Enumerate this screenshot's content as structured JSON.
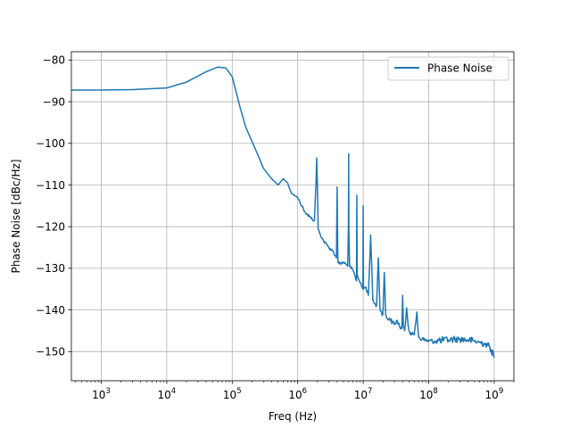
{
  "chart_data": {
    "type": "line",
    "xlabel": "Freq (Hz)",
    "ylabel": "Phase Noise [dBc/Hz]",
    "xscale": "log",
    "xlim": [
      350,
      2000000000
    ],
    "ylim": [
      -157,
      -78
    ],
    "grid": true,
    "legend": {
      "placement": "top-right",
      "entries": [
        "Phase Noise"
      ]
    },
    "x_ticks": [
      {
        "value": 1000,
        "base": "10",
        "exp": "3"
      },
      {
        "value": 10000,
        "base": "10",
        "exp": "4"
      },
      {
        "value": 100000,
        "base": "10",
        "exp": "5"
      },
      {
        "value": 1000000,
        "base": "10",
        "exp": "6"
      },
      {
        "value": 10000000,
        "base": "10",
        "exp": "7"
      },
      {
        "value": 100000000,
        "base": "10",
        "exp": "8"
      },
      {
        "value": 1000000000,
        "base": "10",
        "exp": "9"
      }
    ],
    "y_ticks": [
      {
        "value": -80,
        "label": "−80"
      },
      {
        "value": -90,
        "label": "−90"
      },
      {
        "value": -100,
        "label": "−100"
      },
      {
        "value": -110,
        "label": "−110"
      },
      {
        "value": -120,
        "label": "−120"
      },
      {
        "value": -130,
        "label": "−130"
      },
      {
        "value": -140,
        "label": "−140"
      },
      {
        "value": -150,
        "label": "−150"
      }
    ],
    "series": [
      {
        "name": "Phase Noise",
        "color": "#1f77b4",
        "x": [
          350,
          1000,
          3000,
          10000,
          20000,
          40000,
          60000,
          80000,
          100000,
          130000,
          160000,
          200000,
          250000,
          300000,
          400000,
          500000,
          600000,
          700000,
          800000,
          1000000,
          1300000,
          1600000,
          1800000,
          1900000,
          1950000,
          2000000,
          2050000,
          2150000,
          2500000,
          3000000,
          3500000,
          3900000,
          4000000,
          4100000,
          4500000,
          5000000,
          5800000,
          5950000,
          6000000,
          6050000,
          6200000,
          7000000,
          7900000,
          8000000,
          8100000,
          9000000,
          9900000,
          10000000,
          10100000,
          11000000,
          12000000,
          13000000,
          14000000,
          15000000,
          16000000,
          17000000,
          18000000,
          19000000,
          20000000,
          21000000,
          22000000,
          23000000,
          25000000,
          28000000,
          30000000,
          33000000,
          36000000,
          39000000,
          40000000,
          41000000,
          43000000,
          46000000,
          50000000,
          55000000,
          60000000,
          66000000,
          70000000,
          80000000,
          100000000,
          130000000,
          150000000,
          200000000,
          250000000,
          300000000,
          400000000,
          500000000,
          600000000,
          700000000,
          800000000,
          900000000,
          1000000000
        ],
        "y": [
          -87.2,
          -87.2,
          -87.1,
          -86.7,
          -85.3,
          -82.8,
          -81.7,
          -81.9,
          -84.0,
          -91.0,
          -96.0,
          -99.5,
          -103.0,
          -106.0,
          -108.5,
          -110.0,
          -108.5,
          -109.5,
          -112.0,
          -113.0,
          -116.5,
          -118.0,
          -118.5,
          -110.0,
          -103.5,
          -110.0,
          -120.5,
          -121.5,
          -123.5,
          -125.0,
          -126.0,
          -127.5,
          -110.5,
          -128.5,
          -129.0,
          -128.5,
          -129.5,
          -120.0,
          -102.5,
          -121.0,
          -129.5,
          -130.5,
          -133.0,
          -112.5,
          -131.5,
          -133.5,
          -135.0,
          -115.0,
          -135.0,
          -134.5,
          -136.5,
          -122.0,
          -137.5,
          -138.5,
          -139.0,
          -127.5,
          -139.5,
          -140.5,
          -141.0,
          -131.0,
          -141.0,
          -142.0,
          -142.0,
          -143.0,
          -143.5,
          -142.5,
          -144.0,
          -144.5,
          -136.5,
          -144.0,
          -145.0,
          -139.5,
          -145.0,
          -146.0,
          -146.0,
          -140.5,
          -146.5,
          -147.0,
          -147.5,
          -147.5,
          -147.3,
          -147.2,
          -147.0,
          -147.0,
          -147.2,
          -147.5,
          -147.8,
          -148.0,
          -148.5,
          -149.5,
          -151.5
        ]
      }
    ]
  }
}
